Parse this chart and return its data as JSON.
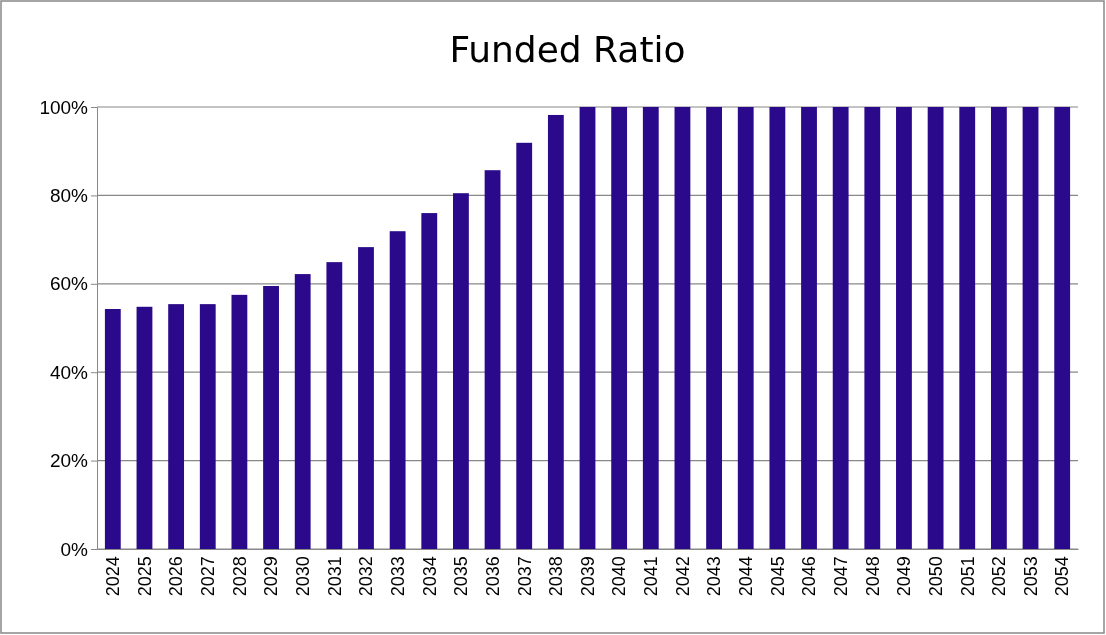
{
  "chart_data": {
    "type": "bar",
    "title": "Funded Ratio",
    "categories": [
      "2024",
      "2025",
      "2026",
      "2027",
      "2028",
      "2029",
      "2030",
      "2031",
      "2032",
      "2033",
      "2034",
      "2035",
      "2036",
      "2037",
      "2038",
      "2039",
      "2040",
      "2041",
      "2042",
      "2043",
      "2044",
      "2045",
      "2046",
      "2047",
      "2048",
      "2049",
      "2050",
      "2051",
      "2052",
      "2053",
      "2054"
    ],
    "values": [
      54.3,
      54.8,
      55.4,
      55.4,
      57.5,
      59.5,
      62.2,
      64.9,
      68.3,
      71.9,
      76.0,
      80.5,
      85.7,
      91.9,
      98.2,
      100,
      100,
      100,
      100,
      100,
      100,
      100,
      100,
      100,
      100,
      100,
      100,
      100,
      100,
      100,
      100
    ],
    "color": "#2a0a8a",
    "ylim": [
      0,
      100
    ],
    "yticks": [
      {
        "value": 0,
        "label": "0%"
      },
      {
        "value": 20,
        "label": "20%"
      },
      {
        "value": 40,
        "label": "40%"
      },
      {
        "value": 60,
        "label": "60%"
      },
      {
        "value": 80,
        "label": "80%"
      },
      {
        "value": 100,
        "label": "100%"
      }
    ],
    "grid": "y"
  }
}
